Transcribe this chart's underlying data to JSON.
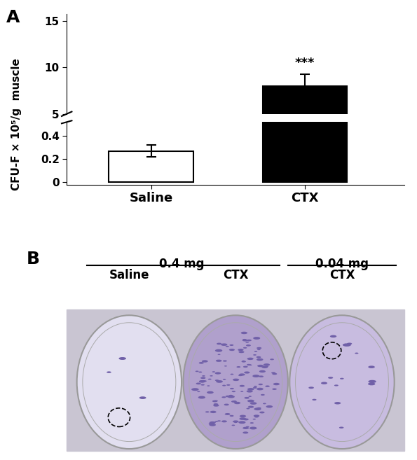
{
  "panel_A_label": "A",
  "panel_B_label": "B",
  "categories": [
    "Saline",
    "CTX"
  ],
  "values": [
    0.27,
    8.0
  ],
  "errors_saline": [
    0.05,
    0.0
  ],
  "errors_ctx": [
    1.3,
    0.0
  ],
  "bar_colors": [
    "white",
    "black"
  ],
  "bar_edgecolors": [
    "black",
    "black"
  ],
  "ylabel": "CFU-F × 10⁵/g  muscle",
  "significance": "***",
  "lower_yticks": [
    0,
    0.2,
    0.4
  ],
  "upper_yticks": [
    5,
    10,
    15
  ],
  "upper_ylim": [
    5.0,
    15.8
  ],
  "lower_ylim": [
    -0.02,
    0.52
  ],
  "group_B_label_04": "0.4 mg",
  "group_B_label_004": "0.04 mg",
  "group_B_sub1": "Saline",
  "group_B_sub2": "CTX",
  "group_B_sub3": "CTX",
  "bg_color": "#ffffff",
  "photo_bg": "#c9c5d2",
  "dish1_color": "#e2dff0",
  "dish2_color": "#b0a0cc",
  "dish3_color": "#c8bce0"
}
